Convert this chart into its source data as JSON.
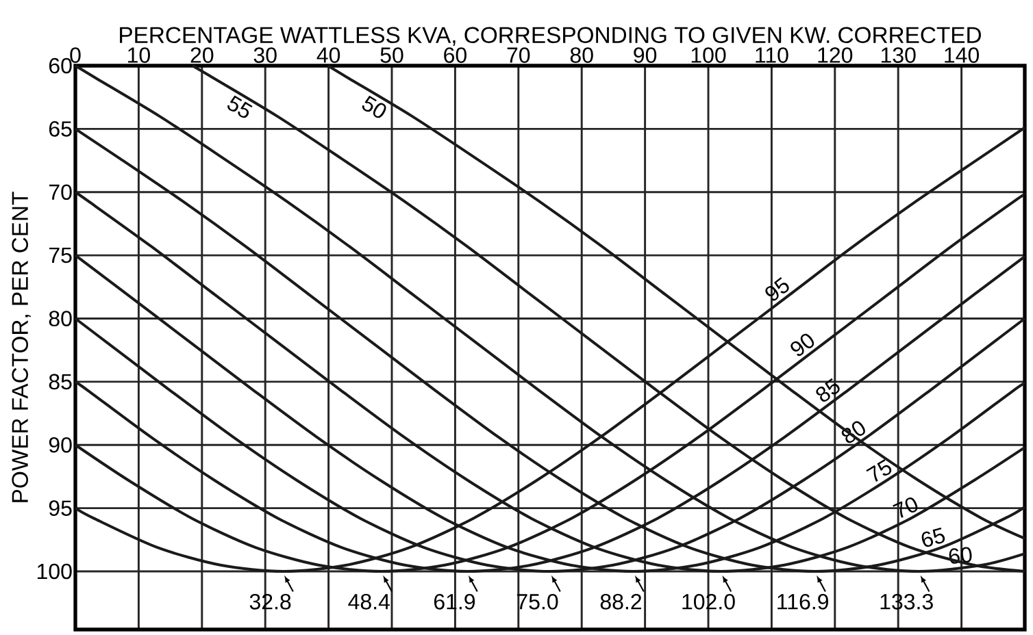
{
  "chart_data": {
    "type": "line",
    "xlabel": "PERCENTAGE WATTLESS KVA, CORRESPONDING TO GIVEN KW. CORRECTED",
    "ylabel": "POWER FACTOR, PER CENT",
    "xlim": [
      0,
      150
    ],
    "ylim": [
      104.6,
      60
    ],
    "xticks": [
      0,
      10,
      20,
      30,
      40,
      50,
      60,
      70,
      80,
      90,
      100,
      110,
      120,
      130,
      140
    ],
    "yticks": [
      60,
      65,
      70,
      75,
      80,
      85,
      90,
      95,
      100
    ],
    "grid": true,
    "series": [
      {
        "name": "95",
        "color": "#1a1a1a",
        "x": [
          0,
          2.9,
          12.9,
          22.9,
          32.9,
          42.9,
          52.9,
          62.9,
          72.9,
          82.9,
          92.9,
          102.9,
          112.9,
          122.9,
          132.9,
          142.9,
          150
        ],
        "values": [
          95,
          95.8,
          98.1,
          99.5,
          100,
          99.5,
          98.1,
          95.8,
          92.8,
          89.4,
          85.7,
          81.9,
          78.1,
          74.3,
          70.7,
          67.3,
          64.9
        ]
      },
      {
        "name": "90",
        "color": "#1a1a1a",
        "x": [
          0,
          8.4,
          18.4,
          28.4,
          38.4,
          48.4,
          58.4,
          68.4,
          78.4,
          88.4,
          98.4,
          108.4,
          118.4,
          128.4,
          138.4,
          148.4,
          150
        ],
        "values": [
          90,
          92.8,
          95.8,
          98.1,
          99.5,
          100,
          99.5,
          98.1,
          95.8,
          92.8,
          89.4,
          85.7,
          81.9,
          78.1,
          74.3,
          70.7,
          70.2
        ]
      },
      {
        "name": "85",
        "color": "#1a1a1a",
        "x": [
          0,
          2.0,
          12.0,
          22.0,
          32.0,
          42.0,
          52.0,
          62.0,
          72.0,
          82.0,
          92.0,
          102.0,
          112.0,
          122.0,
          132.0,
          142.0,
          150
        ],
        "values": [
          85,
          85.7,
          89.4,
          92.8,
          95.8,
          98.1,
          99.5,
          100,
          99.5,
          98.1,
          95.8,
          92.8,
          89.4,
          85.7,
          81.9,
          78.1,
          75.1
        ]
      },
      {
        "name": "80",
        "color": "#1a1a1a",
        "x": [
          0,
          5,
          15,
          25,
          35,
          45,
          55,
          65,
          75,
          85,
          95,
          105,
          115,
          125,
          135,
          145,
          150
        ],
        "values": [
          80,
          81.9,
          85.7,
          89.4,
          92.8,
          95.8,
          98.1,
          99.5,
          100,
          99.5,
          98.1,
          95.8,
          92.8,
          89.4,
          85.7,
          81.9,
          80.0
        ]
      },
      {
        "name": "75",
        "color": "#1a1a1a",
        "x": [
          0,
          8.2,
          18.2,
          28.2,
          38.2,
          48.2,
          58.2,
          68.2,
          78.2,
          88.2,
          98.2,
          108.2,
          118.2,
          128.2,
          138.2,
          148.2,
          150
        ],
        "values": [
          75,
          78.1,
          81.9,
          85.7,
          89.4,
          92.8,
          95.8,
          98.1,
          99.5,
          100,
          99.5,
          98.1,
          95.8,
          92.8,
          89.4,
          85.7,
          85.1
        ]
      },
      {
        "name": "70",
        "color": "#1a1a1a",
        "x": [
          0,
          2.0,
          12.0,
          22.0,
          32.0,
          42.0,
          52.0,
          62.0,
          72.0,
          82.0,
          92.0,
          102.0,
          112.0,
          122.0,
          132.0,
          142.0,
          150
        ],
        "values": [
          70,
          70.7,
          74.3,
          78.1,
          81.9,
          85.7,
          89.4,
          92.8,
          95.8,
          98.1,
          99.5,
          100,
          99.5,
          98.1,
          95.8,
          92.8,
          90.2
        ]
      },
      {
        "name": "65",
        "color": "#1a1a1a",
        "x": [
          0,
          6.9,
          16.9,
          26.9,
          36.9,
          46.9,
          56.9,
          66.9,
          76.9,
          86.9,
          96.9,
          106.9,
          116.9,
          126.9,
          136.9,
          146.9,
          150
        ],
        "values": [
          65,
          67.3,
          70.7,
          74.3,
          78.1,
          81.9,
          85.7,
          89.4,
          92.8,
          95.8,
          98.1,
          99.5,
          100,
          99.5,
          98.1,
          95.8,
          94.9
        ]
      },
      {
        "name": "60",
        "color": "#1a1a1a",
        "x": [
          0,
          3.3,
          13.3,
          23.3,
          33.3,
          43.3,
          53.3,
          63.3,
          73.3,
          83.3,
          93.3,
          103.3,
          113.3,
          123.3,
          133.3,
          143.3,
          150
        ],
        "values": [
          60,
          61.0,
          64.0,
          67.3,
          70.7,
          74.3,
          78.1,
          81.9,
          85.7,
          89.4,
          92.8,
          95.8,
          98.1,
          99.5,
          100,
          99.5,
          98.6
        ]
      },
      {
        "name": "55",
        "color": "#1a1a1a",
        "x": [
          18.5,
          21.9,
          31.9,
          41.9,
          51.9,
          61.9,
          71.9,
          81.9,
          91.9,
          101.9,
          111.9,
          121.9,
          131.9,
          141.9,
          150
        ],
        "values": [
          60,
          61.0,
          64.0,
          67.3,
          70.7,
          74.3,
          78.1,
          81.9,
          85.7,
          89.4,
          92.8,
          95.8,
          98.1,
          99.5,
          100.0
        ]
      },
      {
        "name": "50",
        "color": "#1a1a1a",
        "x": [
          39.9,
          43.2,
          53.2,
          63.2,
          73.2,
          83.2,
          93.2,
          103.2,
          113.2,
          123.2,
          133.2,
          143.2,
          150
        ],
        "values": [
          60,
          61.0,
          64.0,
          67.3,
          70.7,
          74.3,
          78.1,
          81.9,
          85.7,
          89.4,
          92.8,
          95.8,
          97.4
        ]
      }
    ],
    "annotations": [
      {
        "text": "32.8",
        "x": 32.8,
        "y": 100
      },
      {
        "text": "48.4",
        "x": 48.4,
        "y": 100
      },
      {
        "text": "61.9",
        "x": 61.9,
        "y": 100
      },
      {
        "text": "75.0",
        "x": 75.0,
        "y": 100
      },
      {
        "text": "88.2",
        "x": 88.2,
        "y": 100
      },
      {
        "text": "102.0",
        "x": 102.0,
        "y": 100
      },
      {
        "text": "116.9",
        "x": 116.9,
        "y": 100
      },
      {
        "text": "133.3",
        "x": 133.3,
        "y": 100
      }
    ]
  }
}
